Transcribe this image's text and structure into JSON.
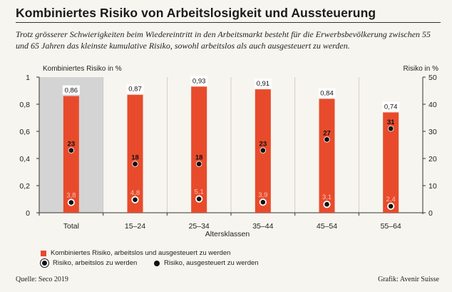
{
  "title": "Kombiniertes Risiko von Arbeitslosigkeit und Aussteuerung",
  "subtitle": "Trotz grösserer Schwierigkeiten beim Wiedereintritt in den Arbeitsmarkt besteht für die Erwerbsbevölkerung zwischen 55 und 65 Jahren das kleinste kumulative Risiko, sowohl arbeitslos als auch ausgesteuert zu werden.",
  "source": "Quelle: Seco 2019",
  "credit": "Grafik: Avenir Suisse",
  "legend": {
    "bar": "Kombiniertes Risiko, arbeitslos und ausgesteuert zu werden",
    "white_dot": "Risiko, arbeitslos zu werden",
    "black_dot": "Risiko, ausgesteuert zu werden"
  },
  "chart_data": {
    "type": "bar",
    "xlabel": "Altersklassen",
    "ylabel_left": "Kombiniertes Risiko in %",
    "ylabel_right": "Risiko in %",
    "ylim_left": [
      0,
      1
    ],
    "ylim_right": [
      0,
      50
    ],
    "yticks_left": [
      "0",
      "0,2",
      "0,4",
      "0,6",
      "0,8",
      "1"
    ],
    "yticks_right": [
      "0",
      "10",
      "20",
      "30",
      "40",
      "50"
    ],
    "categories": [
      "Total",
      "15–24",
      "25–34",
      "35–44",
      "45–54",
      "55–64"
    ],
    "highlight_category": "Total",
    "series": [
      {
        "name": "Kombiniertes Risiko, arbeitslos und ausgesteuert zu werden",
        "axis": "left",
        "values": [
          0.86,
          0.87,
          0.93,
          0.91,
          0.84,
          0.74
        ],
        "labels": [
          "0,86",
          "0,87",
          "0,93",
          "0,91",
          "0,84",
          "0,74"
        ]
      },
      {
        "name": "Risiko, ausgesteuert zu werden",
        "axis": "right",
        "values": [
          23,
          18,
          18,
          23,
          27,
          31
        ],
        "labels": [
          "23",
          "18",
          "18",
          "23",
          "27",
          "31"
        ]
      },
      {
        "name": "Risiko, arbeitslos zu werden",
        "axis": "right",
        "values": [
          3.8,
          4.8,
          5.1,
          3.9,
          3.1,
          2.4
        ],
        "labels": [
          "3,8",
          "4,8",
          "5,1",
          "3,9",
          "3,1",
          "2,4"
        ]
      }
    ],
    "colors": {
      "bar": "#e84b2c",
      "highlight_bg": "#d4d4d4",
      "dot": "#111111"
    }
  }
}
